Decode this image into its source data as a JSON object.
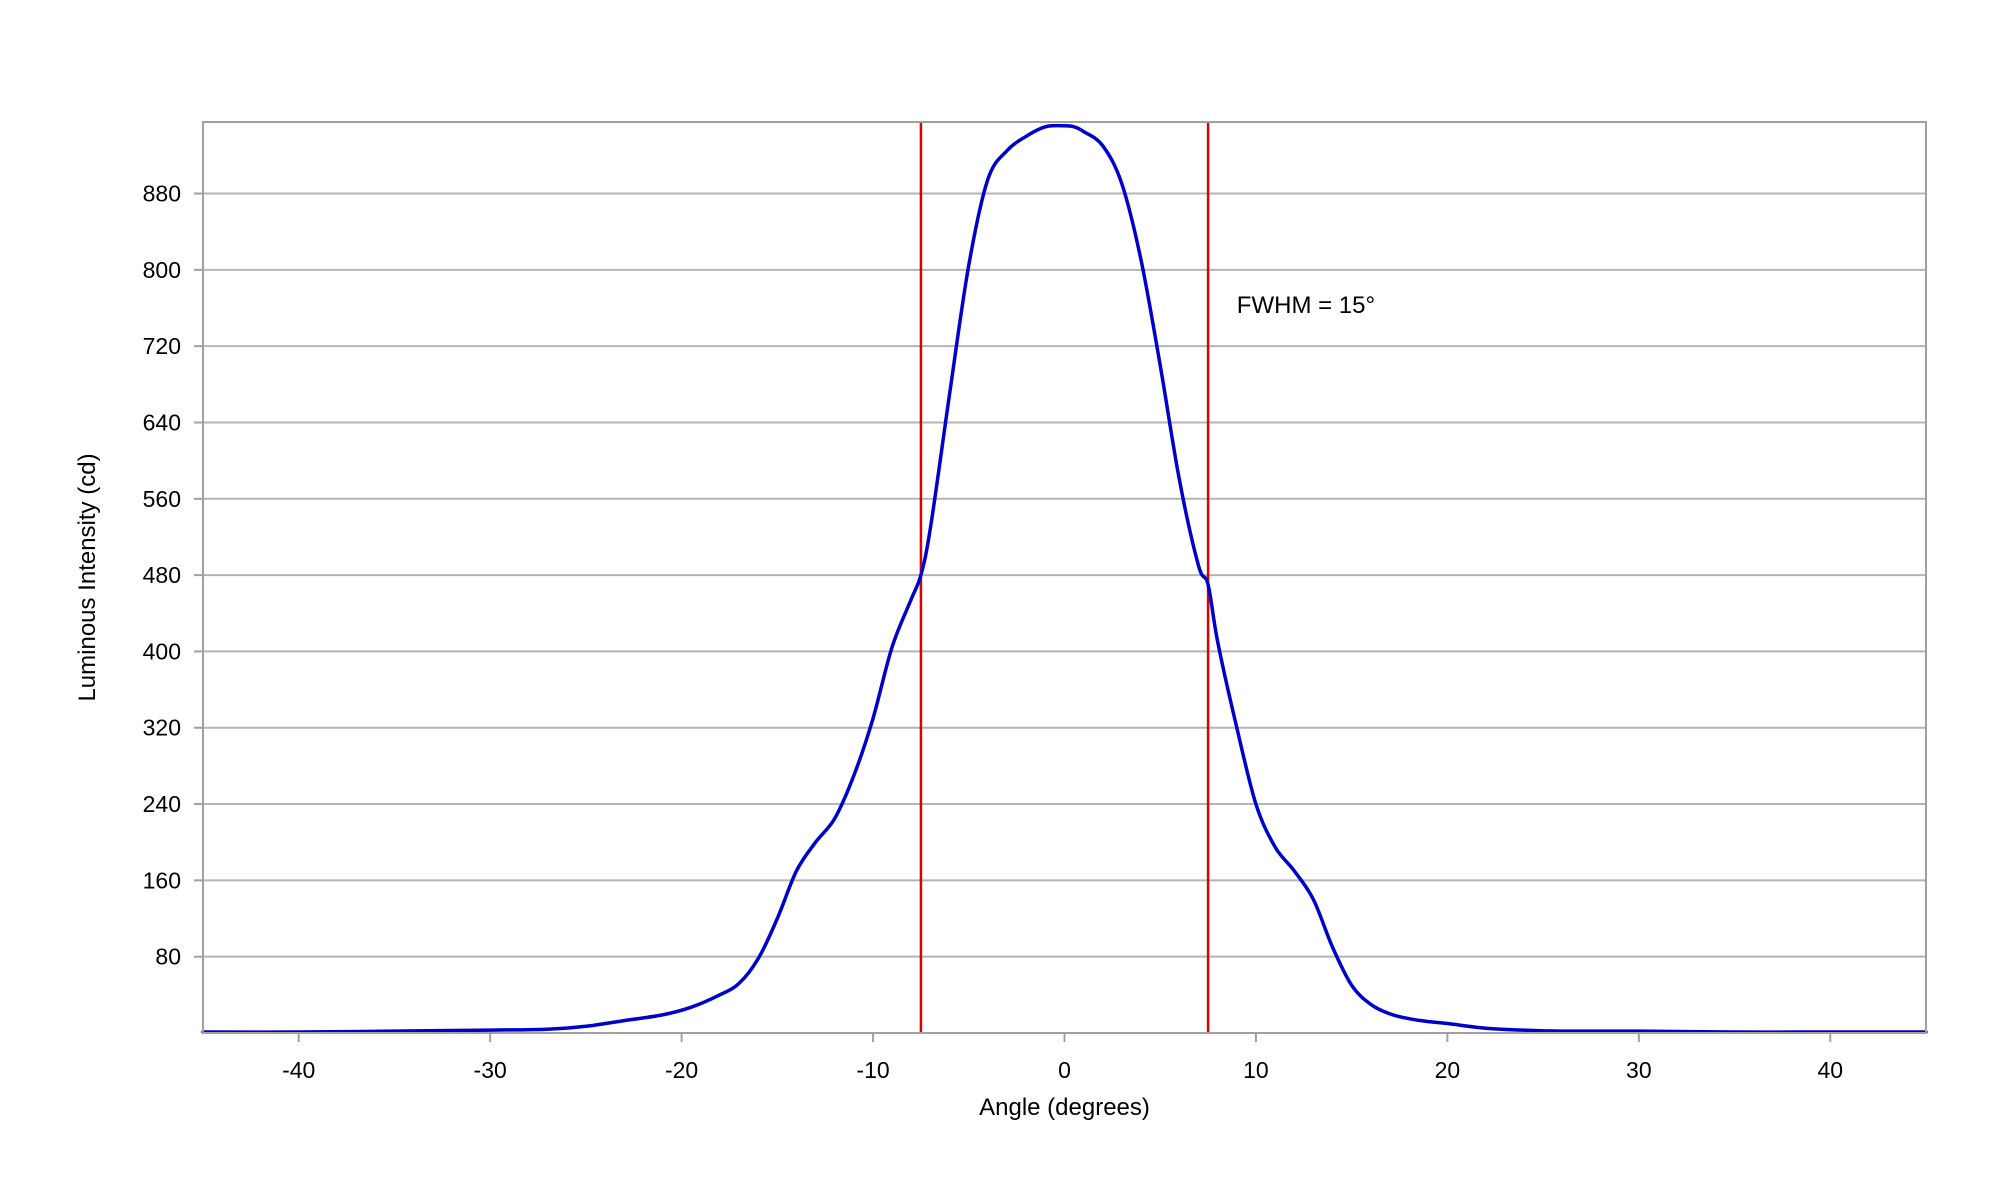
{
  "chart_data": {
    "type": "line",
    "title": "",
    "xlabel": "Angle (degrees)",
    "ylabel": "Luminous Intensity (cd)",
    "xlim": [
      -45,
      45
    ],
    "ylim": [
      0,
      955
    ],
    "x_ticks": [
      -40,
      -30,
      -20,
      -10,
      0,
      10,
      20,
      30,
      40
    ],
    "y_ticks": [
      80,
      160,
      240,
      320,
      400,
      480,
      560,
      640,
      720,
      800,
      880
    ],
    "grid": true,
    "legend": "none",
    "series": [
      {
        "color": "#0000cc",
        "x": [
          -45,
          -40,
          -35,
          -30,
          -27,
          -25,
          -23,
          -21,
          -19.5,
          -18,
          -17,
          -16,
          -15,
          -14,
          -13,
          -12,
          -11,
          -10,
          -9,
          -8,
          -7.5,
          -7,
          -6,
          -5,
          -4,
          -3,
          -2,
          -1,
          0,
          0.5,
          1,
          2,
          3,
          4,
          5,
          6,
          7,
          7.5,
          8,
          9,
          10,
          11,
          12,
          13,
          14,
          15,
          16,
          17,
          18,
          19,
          20,
          22,
          24,
          26,
          30,
          35,
          40,
          45
        ],
        "y": [
          1,
          1,
          2,
          3,
          4,
          7,
          13,
          19,
          27,
          40,
          52,
          78,
          120,
          170,
          200,
          225,
          270,
          330,
          405,
          455,
          480,
          530,
          670,
          805,
          895,
          925,
          940,
          950,
          951,
          950,
          945,
          930,
          890,
          810,
          700,
          580,
          490,
          470,
          410,
          320,
          240,
          195,
          170,
          140,
          90,
          50,
          30,
          20,
          15,
          12,
          10,
          5,
          3,
          2,
          2,
          1,
          1,
          1
        ]
      }
    ],
    "markers": [
      {
        "x": -7.5,
        "color": "#dd0000"
      },
      {
        "x": 7.5,
        "color": "#dd0000"
      }
    ],
    "annotations": [
      {
        "text": "FWHM = 15°",
        "x": 9,
        "y": 755
      }
    ]
  }
}
